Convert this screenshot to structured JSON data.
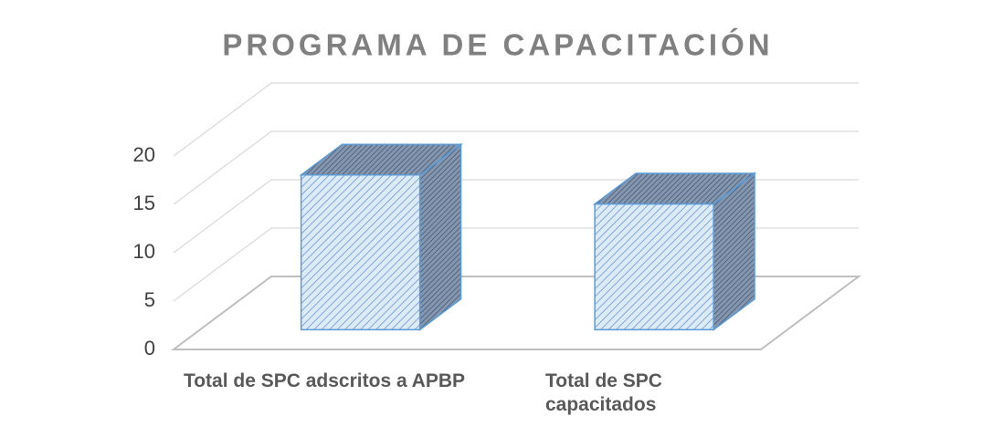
{
  "chart_data": {
    "type": "bar3d",
    "title": "PROGRAMA DE CAPACITACIÓN",
    "categories": [
      "Total de SPC adscritos a APBP",
      "Total de SPC capacitados"
    ],
    "values": [
      16,
      13
    ],
    "color": "#9dc3e6",
    "ylim": [
      0,
      20
    ],
    "yticks": [
      0,
      5,
      10,
      15,
      20
    ],
    "grid": true
  }
}
